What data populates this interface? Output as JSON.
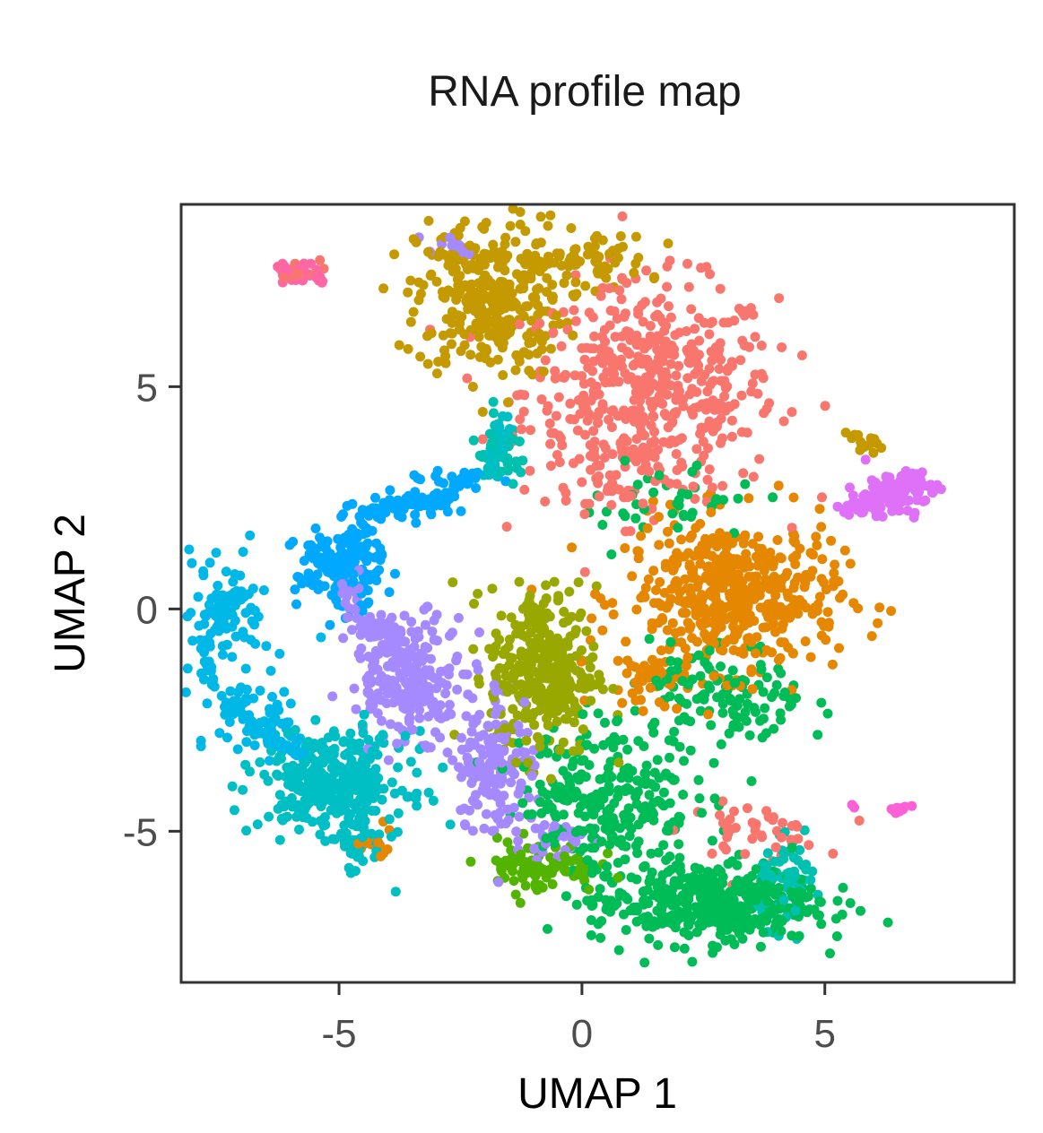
{
  "chart_data": {
    "type": "scatter",
    "title": "RNA profile map",
    "xlabel": "UMAP 1",
    "ylabel": "UMAP 2",
    "xlim": [
      -8.25,
      8.9
    ],
    "ylim": [
      -8.4,
      9.1
    ],
    "xticks": [
      -5,
      0,
      5
    ],
    "yticks": [
      -5,
      0,
      5
    ],
    "grid": false,
    "legend": "none",
    "clusters": [
      {
        "color": "#F8766D",
        "regions": [
          {
            "cx": 1.4,
            "cy": 4.9,
            "sx": 1.3,
            "sy": 1.2,
            "n": 520
          },
          {
            "cx": 3.5,
            "cy": -5.0,
            "sx": 0.7,
            "sy": 0.3,
            "n": 45
          },
          {
            "cx": -5.9,
            "cy": 7.6,
            "sx": 0.25,
            "sy": 0.12,
            "n": 14
          },
          {
            "cx": 0.5,
            "cy": 2.6,
            "sx": 0.4,
            "sy": 0.25,
            "n": 18
          }
        ]
      },
      {
        "color": "#C49A00",
        "regions": [
          {
            "cx": -1.9,
            "cy": 7.0,
            "sx": 0.75,
            "sy": 0.9,
            "n": 330
          },
          {
            "cx": 0.2,
            "cy": 7.8,
            "sx": 0.6,
            "sy": 0.35,
            "n": 60
          }
        ]
      },
      {
        "color": "#E58700",
        "regions": [
          {
            "cx": 3.1,
            "cy": 0.3,
            "sx": 1.1,
            "sy": 0.85,
            "n": 480
          },
          {
            "cx": 1.2,
            "cy": -1.6,
            "sx": 0.45,
            "sy": 0.3,
            "n": 40
          },
          {
            "cx": -4.3,
            "cy": -5.3,
            "sx": 0.3,
            "sy": 0.25,
            "n": 12
          }
        ]
      },
      {
        "color": "#99A800",
        "regions": [
          {
            "cx": -0.8,
            "cy": -1.4,
            "sx": 0.55,
            "sy": 0.95,
            "n": 330
          }
        ]
      },
      {
        "color": "#53B400",
        "regions": [
          {
            "cx": -0.9,
            "cy": -5.8,
            "sx": 0.6,
            "sy": 0.3,
            "n": 90
          }
        ]
      },
      {
        "color": "#00BC56",
        "regions": [
          {
            "cx": 2.5,
            "cy": -6.6,
            "sx": 1.15,
            "sy": 0.45,
            "n": 420
          },
          {
            "cx": 0.5,
            "cy": -4.2,
            "sx": 0.9,
            "sy": 0.85,
            "n": 260
          },
          {
            "cx": 3.0,
            "cy": -2.0,
            "sx": 0.8,
            "sy": 0.6,
            "n": 120
          },
          {
            "cx": 1.8,
            "cy": 2.4,
            "sx": 0.9,
            "sy": 0.5,
            "n": 40
          }
        ]
      },
      {
        "color": "#00C0AF",
        "regions": [
          {
            "cx": 4.3,
            "cy": -6.2,
            "sx": 0.35,
            "sy": 0.45,
            "n": 70
          },
          {
            "cx": -1.7,
            "cy": 3.5,
            "sx": 0.3,
            "sy": 0.35,
            "n": 40
          }
        ]
      },
      {
        "color": "#00BFC4",
        "regions": [
          {
            "cx": -5.1,
            "cy": -3.9,
            "sx": 0.75,
            "sy": 0.55,
            "n": 330
          },
          {
            "cx": -4.6,
            "cy": -5.3,
            "sx": 0.3,
            "sy": 0.35,
            "n": 40
          }
        ]
      },
      {
        "color": "#00B8E7",
        "regions": [
          {
            "cx": -7.3,
            "cy": 0.0,
            "sx": 0.45,
            "sy": 0.7,
            "n": 60
          },
          {
            "cx": -6.6,
            "cy": -2.5,
            "sx": 0.45,
            "sy": 0.5,
            "n": 50
          }
        ]
      },
      {
        "color": "#00A9FF",
        "regions": [
          {
            "cx": -5.0,
            "cy": 0.9,
            "sx": 0.45,
            "sy": 0.45,
            "n": 150
          },
          {
            "cx": -3.7,
            "cy": 2.3,
            "sx": 0.5,
            "sy": 0.15,
            "n": 40
          },
          {
            "cx": -2.6,
            "cy": 2.8,
            "sx": 0.4,
            "sy": 0.15,
            "n": 25
          }
        ]
      },
      {
        "color": "#A58AFF",
        "regions": [
          {
            "cx": -3.6,
            "cy": -1.5,
            "sx": 0.6,
            "sy": 0.7,
            "n": 200
          },
          {
            "cx": -1.8,
            "cy": -3.5,
            "sx": 0.4,
            "sy": 0.9,
            "n": 160
          },
          {
            "cx": -0.5,
            "cy": -5.2,
            "sx": 0.35,
            "sy": 0.25,
            "n": 25
          },
          {
            "cx": -2.8,
            "cy": 8.2,
            "sx": 0.3,
            "sy": 0.1,
            "n": 10
          }
        ]
      },
      {
        "color": "#DF70F8",
        "regions": [
          {
            "cx": 6.4,
            "cy": 2.6,
            "sx": 0.45,
            "sy": 0.25,
            "n": 80
          }
        ]
      },
      {
        "color": "#FB61D7",
        "regions": [
          {
            "cx": 6.5,
            "cy": -4.5,
            "sx": 0.12,
            "sy": 0.05,
            "n": 10
          },
          {
            "cx": 5.6,
            "cy": -4.45,
            "sx": 0.05,
            "sy": 0.04,
            "n": 2
          }
        ]
      },
      {
        "color": "#FF67A4",
        "regions": [
          {
            "cx": -5.8,
            "cy": 7.55,
            "sx": 0.3,
            "sy": 0.1,
            "n": 14
          }
        ]
      }
    ],
    "paths": [
      {
        "color": "#00B8E7",
        "n": 110,
        "points": [
          [
            -6.9,
            0.3
          ],
          [
            -7.4,
            0.0
          ],
          [
            -7.8,
            -1.1
          ],
          [
            -7.4,
            -2.0
          ],
          [
            -6.6,
            -2.9
          ],
          [
            -5.8,
            -3.3
          ]
        ]
      },
      {
        "color": "#00A9FF",
        "n": 70,
        "points": [
          [
            -4.9,
            1.0
          ],
          [
            -4.5,
            1.9
          ],
          [
            -3.8,
            2.4
          ],
          [
            -3.0,
            2.4
          ],
          [
            -2.0,
            3.1
          ]
        ]
      },
      {
        "color": "#A58AFF",
        "n": 80,
        "points": [
          [
            -4.9,
            0.8
          ],
          [
            -4.6,
            -0.3
          ],
          [
            -4.0,
            -0.6
          ],
          [
            -3.4,
            -1.4
          ],
          [
            -3.0,
            -2.4
          ]
        ]
      },
      {
        "color": "#00BFC4",
        "n": 40,
        "points": [
          [
            -2.0,
            3.0
          ],
          [
            -1.7,
            3.5
          ],
          [
            -1.6,
            4.3
          ]
        ]
      },
      {
        "color": "#C49A00",
        "n": 18,
        "points": [
          [
            5.55,
            4.0
          ],
          [
            5.9,
            3.8
          ],
          [
            6.3,
            3.4
          ]
        ]
      },
      {
        "color": "#DF70F8",
        "n": 50,
        "points": [
          [
            5.4,
            2.1
          ],
          [
            6.0,
            2.5
          ],
          [
            6.6,
            2.8
          ],
          [
            7.2,
            3.05
          ]
        ]
      },
      {
        "color": "#FF67A4",
        "n": 14,
        "points": [
          [
            -6.3,
            7.75
          ],
          [
            -5.9,
            7.6
          ],
          [
            -5.5,
            7.4
          ]
        ]
      }
    ]
  }
}
